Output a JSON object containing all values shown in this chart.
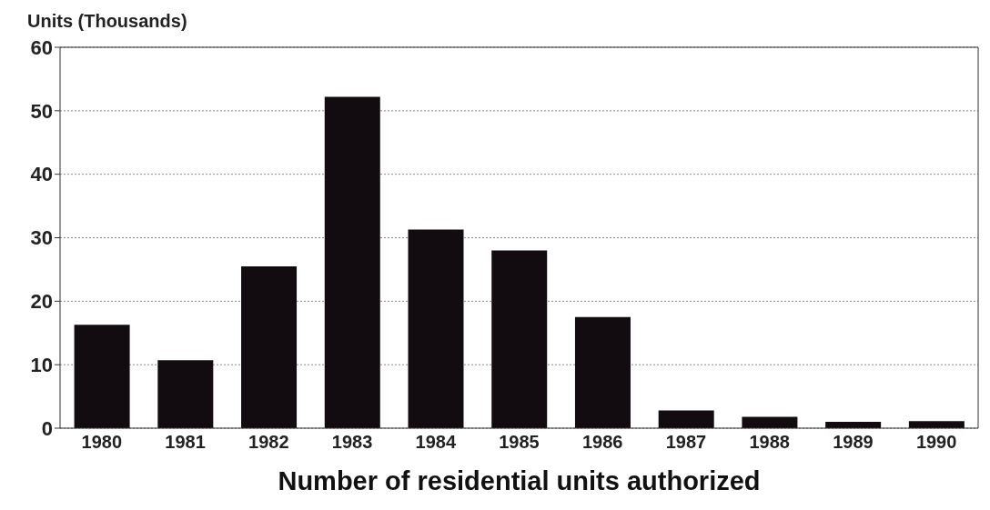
{
  "chart_data": {
    "type": "bar",
    "ylabel": "Units (Thousands)",
    "xlabel": "Number of residential units authorized",
    "categories": [
      "1980",
      "1981",
      "1982",
      "1983",
      "1984",
      "1985",
      "1986",
      "1987",
      "1988",
      "1989",
      "1990"
    ],
    "values": [
      16.3,
      10.7,
      25.5,
      52.2,
      31.3,
      28,
      17.5,
      2.8,
      1.8,
      1,
      1.1
    ],
    "color": "#120c10",
    "ylim": [
      0,
      60
    ],
    "yticks": [
      0,
      10,
      20,
      30,
      40,
      50,
      60
    ],
    "grid": "y"
  }
}
